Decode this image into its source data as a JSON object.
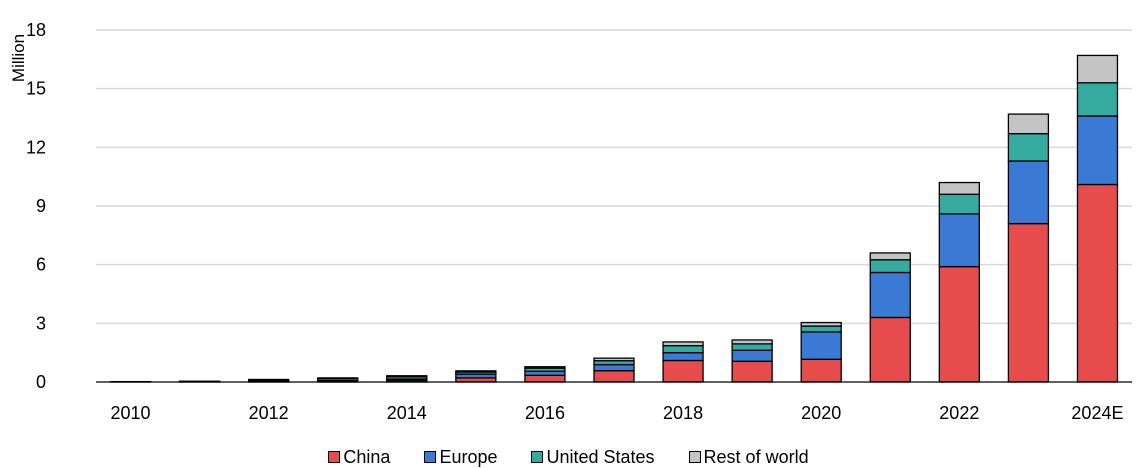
{
  "chart_data": {
    "type": "bar",
    "stacked": true,
    "title": "",
    "xlabel": "",
    "ylabel": "Million",
    "ylim": [
      0,
      18
    ],
    "yticks": [
      0,
      3,
      6,
      9,
      12,
      15,
      18
    ],
    "grid": true,
    "legend_position": "bottom",
    "categories": [
      "2010",
      "2011",
      "2012",
      "2013",
      "2014",
      "2015",
      "2016",
      "2017",
      "2018",
      "2019",
      "2020",
      "2021",
      "2022",
      "2023",
      "2024E"
    ],
    "x_tick_labels": [
      "2010",
      "",
      "2012",
      "",
      "2014",
      "",
      "2016",
      "",
      "2018",
      "",
      "2020",
      "",
      "2022",
      "",
      "2024E"
    ],
    "series": [
      {
        "name": "China",
        "color": "#e64c4b",
        "values": [
          0.01,
          0.01,
          0.01,
          0.02,
          0.08,
          0.21,
          0.34,
          0.58,
          1.1,
          1.06,
          1.16,
          3.3,
          5.9,
          8.1,
          10.1
        ]
      },
      {
        "name": "Europe",
        "color": "#3a79d4",
        "values": [
          0.01,
          0.01,
          0.03,
          0.05,
          0.07,
          0.19,
          0.21,
          0.31,
          0.4,
          0.56,
          1.4,
          2.3,
          2.7,
          3.2,
          3.5
        ]
      },
      {
        "name": "United States",
        "color": "#35aba0",
        "values": [
          0.0,
          0.01,
          0.05,
          0.1,
          0.12,
          0.11,
          0.16,
          0.2,
          0.36,
          0.33,
          0.3,
          0.65,
          1.0,
          1.4,
          1.7
        ]
      },
      {
        "name": "Rest of world",
        "color": "#c4c4c4",
        "values": [
          0.0,
          0.01,
          0.04,
          0.04,
          0.05,
          0.06,
          0.07,
          0.13,
          0.19,
          0.2,
          0.18,
          0.35,
          0.6,
          1.0,
          1.4
        ]
      }
    ]
  }
}
